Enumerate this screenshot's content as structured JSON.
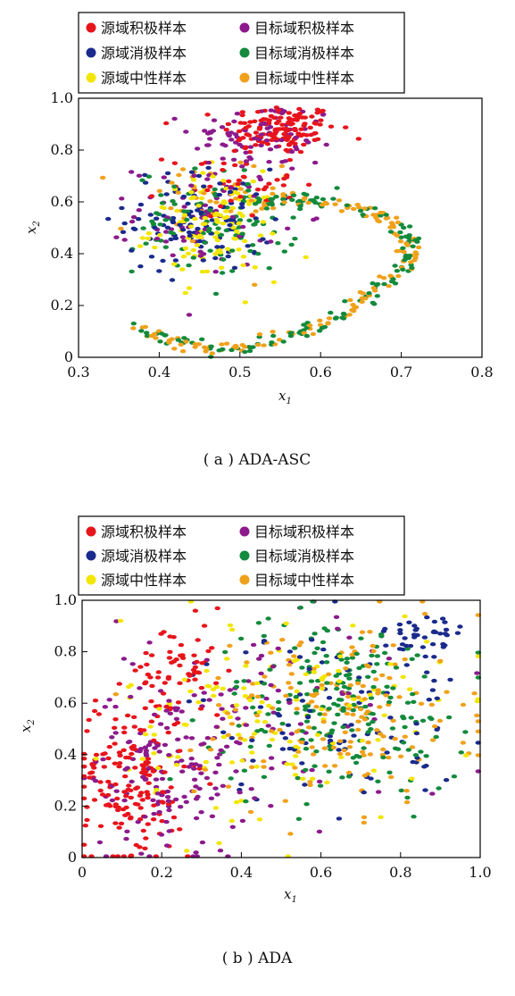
{
  "colors": {
    "source_pos": "#e8141c",
    "source_neg": "#1a2a8c",
    "source_neu": "#f2e600",
    "target_pos": "#8c1a8c",
    "target_neg": "#138a3c",
    "target_neu": "#f0a11a"
  },
  "legend": {
    "source_pos": "源域积极样本",
    "source_neg": "源域消极样本",
    "source_neu": "源域中性样本",
    "target_pos": "目标域积极样本",
    "target_neg": "目标域消极样本",
    "target_neu": "目标域中性样本"
  },
  "chart_data": [
    {
      "type": "scatter",
      "caption": "( a ) ADA-ASC",
      "xlabel": "x1",
      "ylabel": "x2",
      "xlim": [
        0.3,
        0.8
      ],
      "ylim": [
        0,
        1.0
      ],
      "xticks": [
        "0.3",
        "0.4",
        "0.5",
        "0.6",
        "0.7",
        "0.8"
      ],
      "yticks": [
        "0",
        "0.2",
        "0.4",
        "0.6",
        "0.8",
        "1.0"
      ],
      "xtick_values": [
        0.3,
        0.4,
        0.5,
        0.6,
        0.7,
        0.8
      ],
      "ytick_values": [
        0,
        0.2,
        0.4,
        0.6,
        0.8,
        1.0
      ],
      "legend_position": "top",
      "grid": false,
      "clusters": [
        {
          "series": "source_pos",
          "cx": 0.55,
          "cy": 0.88,
          "sx": 0.035,
          "sy": 0.05,
          "n": 130
        },
        {
          "series": "target_pos",
          "cx": 0.53,
          "cy": 0.85,
          "sx": 0.045,
          "sy": 0.07,
          "n": 90
        },
        {
          "series": "source_pos",
          "cx": 0.49,
          "cy": 0.68,
          "sx": 0.04,
          "sy": 0.07,
          "n": 45
        },
        {
          "series": "source_neg",
          "cx": 0.45,
          "cy": 0.53,
          "sx": 0.045,
          "sy": 0.1,
          "n": 110
        },
        {
          "series": "source_neu",
          "cx": 0.47,
          "cy": 0.5,
          "sx": 0.04,
          "sy": 0.1,
          "n": 120
        },
        {
          "series": "target_neg",
          "cx": 0.47,
          "cy": 0.52,
          "sx": 0.05,
          "sy": 0.1,
          "n": 100
        },
        {
          "series": "target_pos",
          "cx": 0.46,
          "cy": 0.55,
          "sx": 0.045,
          "sy": 0.1,
          "n": 70
        },
        {
          "series": "target_neu",
          "cx": 0.45,
          "cy": 0.58,
          "sx": 0.05,
          "sy": 0.1,
          "n": 40
        }
      ],
      "arms": [
        {
          "series": [
            "target_neu",
            "target_neg"
          ],
          "points": [
            [
              0.52,
              0.58
            ],
            [
              0.56,
              0.62
            ],
            [
              0.6,
              0.6
            ],
            [
              0.66,
              0.57
            ],
            [
              0.7,
              0.5
            ],
            [
              0.71,
              0.42
            ],
            [
              0.7,
              0.35
            ],
            [
              0.67,
              0.26
            ],
            [
              0.63,
              0.17
            ],
            [
              0.58,
              0.1
            ],
            [
              0.52,
              0.05
            ],
            [
              0.47,
              0.03
            ],
            [
              0.42,
              0.06
            ],
            [
              0.37,
              0.12
            ]
          ],
          "n": 280,
          "jitter": 0.008
        }
      ]
    },
    {
      "type": "scatter",
      "caption": "( b ) ADA",
      "xlabel": "x1",
      "ylabel": "x2",
      "xlim": [
        0,
        1.0
      ],
      "ylim": [
        0,
        1.0
      ],
      "xticks": [
        "0",
        "0.2",
        "0.4",
        "0.6",
        "0.8",
        "1.0"
      ],
      "yticks": [
        "0",
        "0.2",
        "0.4",
        "0.6",
        "0.8",
        "1.0"
      ],
      "xtick_values": [
        0,
        0.2,
        0.4,
        0.6,
        0.8,
        1.0
      ],
      "ytick_values": [
        0,
        0.2,
        0.4,
        0.6,
        0.8,
        1.0
      ],
      "legend_position": "top",
      "grid": false,
      "clusters": [
        {
          "series": "source_pos",
          "cx": 0.12,
          "cy": 0.3,
          "sx": 0.07,
          "sy": 0.17,
          "n": 170
        },
        {
          "series": "source_pos",
          "cx": 0.25,
          "cy": 0.72,
          "sx": 0.06,
          "sy": 0.1,
          "n": 60
        },
        {
          "series": "target_pos",
          "cx": 0.22,
          "cy": 0.35,
          "sx": 0.1,
          "sy": 0.17,
          "n": 150
        },
        {
          "series": "source_neg",
          "cx": 0.62,
          "cy": 0.55,
          "sx": 0.17,
          "sy": 0.17,
          "n": 90
        },
        {
          "series": "source_neg",
          "cx": 0.86,
          "cy": 0.85,
          "sx": 0.05,
          "sy": 0.06,
          "n": 40
        },
        {
          "series": "source_neu",
          "cx": 0.5,
          "cy": 0.55,
          "sx": 0.2,
          "sy": 0.2,
          "n": 130
        },
        {
          "series": "target_neg",
          "cx": 0.65,
          "cy": 0.6,
          "sx": 0.16,
          "sy": 0.17,
          "n": 200
        },
        {
          "series": "target_neu",
          "cx": 0.63,
          "cy": 0.55,
          "sx": 0.17,
          "sy": 0.18,
          "n": 180
        },
        {
          "series": "target_pos",
          "cx": 0.52,
          "cy": 0.6,
          "sx": 0.2,
          "sy": 0.2,
          "n": 60
        }
      ],
      "arms": []
    }
  ]
}
